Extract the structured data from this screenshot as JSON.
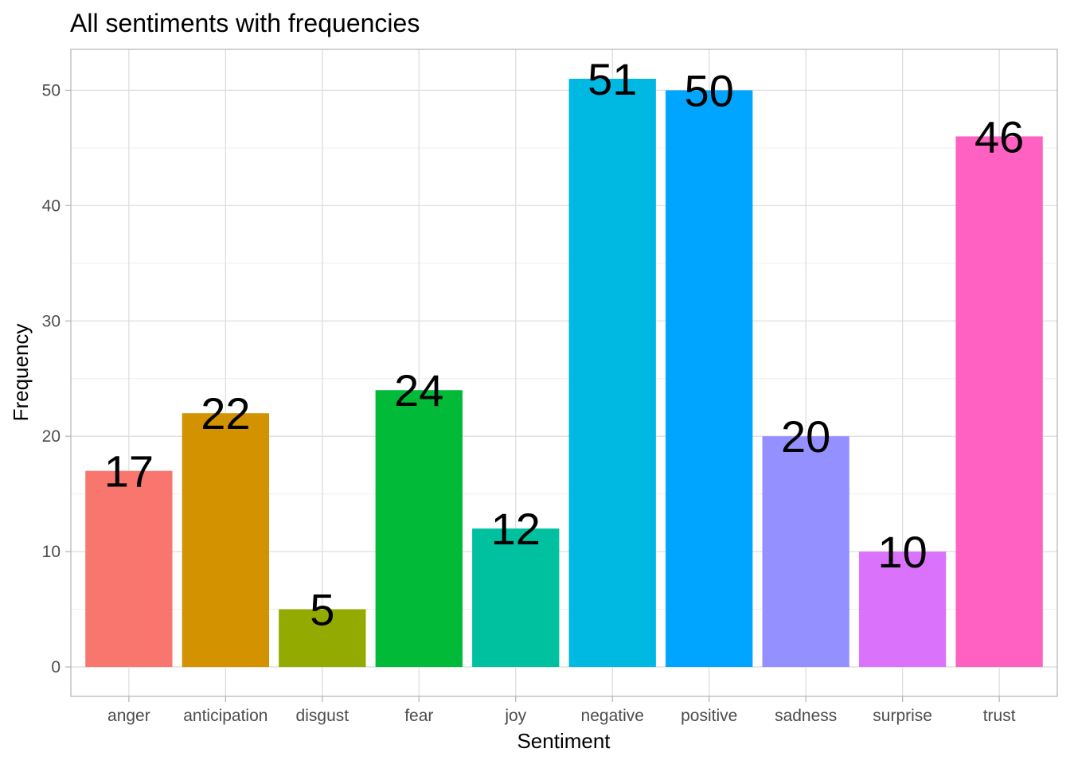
{
  "chart_data": {
    "type": "bar",
    "title": "All sentiments with frequencies",
    "xlabel": "Sentiment",
    "ylabel": "Frequency",
    "categories": [
      "anger",
      "anticipation",
      "disgust",
      "fear",
      "joy",
      "negative",
      "positive",
      "sadness",
      "surprise",
      "trust"
    ],
    "values": [
      17,
      22,
      5,
      24,
      12,
      51,
      50,
      20,
      10,
      46
    ],
    "colors": [
      "#F8766D",
      "#D39200",
      "#93AA00",
      "#00BA38",
      "#00C19F",
      "#00B9E3",
      "#00A5FF",
      "#9590FF",
      "#DB72FB",
      "#FF61C3"
    ],
    "y_ticks": [
      0,
      10,
      20,
      30,
      40,
      50
    ],
    "ylim": [
      -2.55,
      53.55
    ],
    "grid": true,
    "legend": "none"
  }
}
